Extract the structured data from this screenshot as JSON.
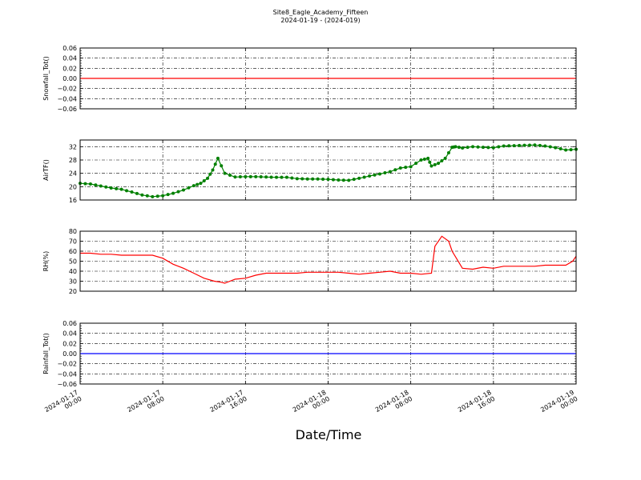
{
  "figure": {
    "title": "Site8_Eagle_Academy_Fifteen",
    "subtitle": "2024-01-19 - (2024-019)",
    "xlabel": "Date/Time",
    "x_tick_labels": [
      [
        "2024-01-17",
        "00:00"
      ],
      [
        "2024-01-17",
        "08:00"
      ],
      [
        "2024-01-17",
        "16:00"
      ],
      [
        "2024-01-18",
        "00:00"
      ],
      [
        "2024-01-18",
        "08:00"
      ],
      [
        "2024-01-18",
        "16:00"
      ],
      [
        "2024-01-19",
        "00:00"
      ]
    ]
  },
  "chart_data": [
    {
      "type": "line",
      "ylabel": "Snowfall_Tot()",
      "xlim": [
        "2024-01-17 00:00",
        "2024-01-19 00:00"
      ],
      "ylim": [
        -0.06,
        0.06
      ],
      "yticks": [
        -0.06,
        -0.04,
        -0.02,
        0.0,
        0.02,
        0.04,
        0.06
      ],
      "ytick_labels": [
        "−0.06",
        "−0.04",
        "−0.02",
        "0.00",
        "0.02",
        "0.04",
        "0.06"
      ],
      "grid": true,
      "series": [
        {
          "color": "#ff0000",
          "marker": "none",
          "x": [
            "2024-01-17 00:00",
            "2024-01-19 00:00"
          ],
          "y": [
            0,
            0
          ]
        }
      ]
    },
    {
      "type": "line",
      "ylabel": "AirTF()",
      "xlim": [
        "2024-01-17 00:00",
        "2024-01-19 00:00"
      ],
      "ylim": [
        16,
        34
      ],
      "yticks": [
        16,
        20,
        24,
        28,
        32
      ],
      "ytick_labels": [
        "16",
        "20",
        "24",
        "28",
        "32"
      ],
      "grid": true,
      "series": [
        {
          "color": "#008000",
          "marker": "dot",
          "x": [
            "2024-01-17 00:00",
            "2024-01-17 01:00",
            "2024-01-17 02:00",
            "2024-01-17 03:00",
            "2024-01-17 04:00",
            "2024-01-17 05:00",
            "2024-01-17 06:00",
            "2024-01-17 07:00",
            "2024-01-17 08:00",
            "2024-01-17 09:00",
            "2024-01-17 10:00",
            "2024-01-17 11:00",
            "2024-01-17 11:40",
            "2024-01-17 12:20",
            "2024-01-17 12:50",
            "2024-01-17 13:20",
            "2024-01-17 14:00",
            "2024-01-17 15:00",
            "2024-01-17 16:00",
            "2024-01-17 17:00",
            "2024-01-17 18:00",
            "2024-01-17 19:00",
            "2024-01-17 20:00",
            "2024-01-17 21:00",
            "2024-01-17 22:00",
            "2024-01-17 23:00",
            "2024-01-18 00:00",
            "2024-01-18 01:00",
            "2024-01-18 02:00",
            "2024-01-18 03:00",
            "2024-01-18 04:00",
            "2024-01-18 05:00",
            "2024-01-18 06:00",
            "2024-01-18 07:00",
            "2024-01-18 08:00",
            "2024-01-18 09:00",
            "2024-01-18 09:40",
            "2024-01-18 10:00",
            "2024-01-18 10:40",
            "2024-01-18 11:20",
            "2024-01-18 12:00",
            "2024-01-18 12:20",
            "2024-01-18 13:00",
            "2024-01-18 14:00",
            "2024-01-18 15:00",
            "2024-01-18 16:00",
            "2024-01-18 17:00",
            "2024-01-18 18:00",
            "2024-01-18 19:00",
            "2024-01-18 20:00",
            "2024-01-18 21:00",
            "2024-01-18 22:00",
            "2024-01-18 23:00",
            "2024-01-19 00:00"
          ],
          "y": [
            21.0,
            20.8,
            20.2,
            19.6,
            19.2,
            18.4,
            17.5,
            17.0,
            17.3,
            18.0,
            19.0,
            20.3,
            21.0,
            22.5,
            25.0,
            28.5,
            24.0,
            22.9,
            23.0,
            23.0,
            22.9,
            22.8,
            22.8,
            22.4,
            22.3,
            22.3,
            22.2,
            22.0,
            21.9,
            22.5,
            23.2,
            23.8,
            24.5,
            25.6,
            26.0,
            28.0,
            28.5,
            26.2,
            27.0,
            28.5,
            31.8,
            32.0,
            31.6,
            32.0,
            31.8,
            31.7,
            32.2,
            32.3,
            32.4,
            32.5,
            32.2,
            31.7,
            31.0,
            31.2
          ]
        }
      ]
    },
    {
      "type": "line",
      "ylabel": "RH(%)",
      "xlim": [
        "2024-01-17 00:00",
        "2024-01-19 00:00"
      ],
      "ylim": [
        20,
        80
      ],
      "yticks": [
        20,
        30,
        40,
        50,
        60,
        70,
        80
      ],
      "ytick_labels": [
        "20",
        "30",
        "40",
        "50",
        "60",
        "70",
        "80"
      ],
      "grid": true,
      "series": [
        {
          "color": "#ff0000",
          "marker": "none",
          "x": [
            "2024-01-17 00:00",
            "2024-01-17 01:00",
            "2024-01-17 02:00",
            "2024-01-17 03:00",
            "2024-01-17 04:00",
            "2024-01-17 05:00",
            "2024-01-17 06:00",
            "2024-01-17 07:00",
            "2024-01-17 08:00",
            "2024-01-17 09:00",
            "2024-01-17 10:00",
            "2024-01-17 11:00",
            "2024-01-17 12:00",
            "2024-01-17 13:00",
            "2024-01-17 13:40",
            "2024-01-17 14:00",
            "2024-01-17 15:00",
            "2024-01-17 16:00",
            "2024-01-17 17:00",
            "2024-01-17 18:00",
            "2024-01-17 19:00",
            "2024-01-17 20:00",
            "2024-01-17 21:00",
            "2024-01-17 22:00",
            "2024-01-17 23:00",
            "2024-01-18 00:00",
            "2024-01-18 01:00",
            "2024-01-18 02:00",
            "2024-01-18 03:00",
            "2024-01-18 04:00",
            "2024-01-18 05:00",
            "2024-01-18 06:00",
            "2024-01-18 07:00",
            "2024-01-18 08:00",
            "2024-01-18 09:00",
            "2024-01-18 10:00",
            "2024-01-18 10:20",
            "2024-01-18 11:00",
            "2024-01-18 11:40",
            "2024-01-18 12:00",
            "2024-01-18 13:00",
            "2024-01-18 14:00",
            "2024-01-18 15:00",
            "2024-01-18 16:00",
            "2024-01-18 17:00",
            "2024-01-18 18:00",
            "2024-01-18 19:00",
            "2024-01-18 20:00",
            "2024-01-18 21:00",
            "2024-01-18 22:00",
            "2024-01-18 23:00",
            "2024-01-18 23:40",
            "2024-01-19 00:00"
          ],
          "y": [
            58,
            58,
            57,
            57,
            56,
            56,
            56,
            56,
            53,
            47,
            43,
            38,
            33,
            30,
            29,
            28,
            32,
            33,
            36,
            38,
            38,
            38,
            38,
            39,
            39,
            39,
            39,
            38,
            37,
            38,
            39,
            40,
            38,
            38,
            37,
            38,
            65,
            75,
            70,
            60,
            43,
            42,
            44,
            43,
            45,
            45,
            45,
            45,
            46,
            46,
            46,
            50,
            55
          ]
        }
      ]
    },
    {
      "type": "line",
      "ylabel": "Rainfall_Tot()",
      "xlim": [
        "2024-01-17 00:00",
        "2024-01-19 00:00"
      ],
      "ylim": [
        -0.06,
        0.06
      ],
      "yticks": [
        -0.06,
        -0.04,
        -0.02,
        0.0,
        0.02,
        0.04,
        0.06
      ],
      "ytick_labels": [
        "−0.06",
        "−0.04",
        "−0.02",
        "0.00",
        "0.02",
        "0.04",
        "0.06"
      ],
      "grid": true,
      "series": [
        {
          "color": "#0000ff",
          "marker": "none",
          "x": [
            "2024-01-17 00:00",
            "2024-01-19 00:00"
          ],
          "y": [
            0,
            0
          ]
        }
      ]
    }
  ]
}
